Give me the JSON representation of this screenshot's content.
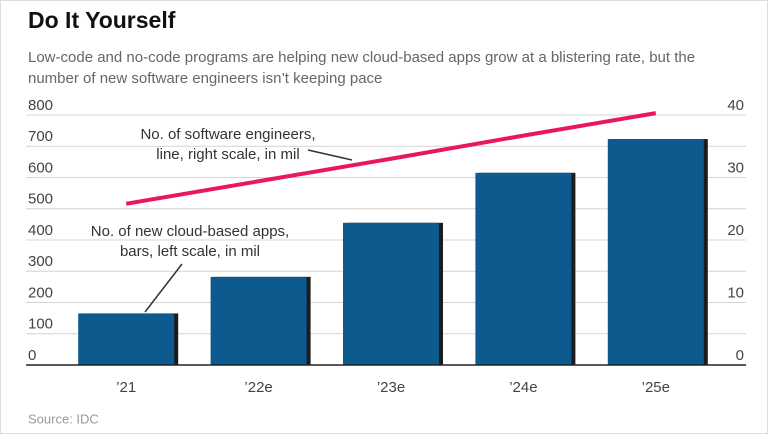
{
  "chart_data": {
    "type": "bar",
    "title": "Do It Yourself",
    "subtitle": [
      "Low-code and no-code programs are helping new cloud-based apps grow at a blistering rate, but the",
      "number of new software engineers isn’t keeping pace"
    ],
    "categories": [
      "’21",
      "’22e",
      "’23e",
      "’24e",
      "’25e"
    ],
    "series": [
      {
        "name": "No. of new cloud-based apps",
        "type": "bar",
        "color": "#0d5a8e",
        "values": [
          165,
          282,
          455,
          615,
          723
        ]
      },
      {
        "name": "No. of software engineers",
        "type": "line",
        "axis": "y2",
        "color": "#e8185a",
        "values": [
          25.8,
          29.4,
          33,
          36.7,
          40.3
        ]
      }
    ],
    "annotations": [
      [
        "No. of software engineers,",
        "line, right scale, in mil"
      ],
      [
        "No. of new cloud-based apps,",
        "bars, left scale, in mil"
      ]
    ],
    "ylim": [
      0,
      800
    ],
    "yticks": [
      0,
      100,
      200,
      300,
      400,
      500,
      600,
      700,
      800
    ],
    "y2lim": [
      0,
      40
    ],
    "y2ticks": [
      0,
      10,
      20,
      30,
      40
    ],
    "grid": true,
    "source": "Source: IDC"
  }
}
